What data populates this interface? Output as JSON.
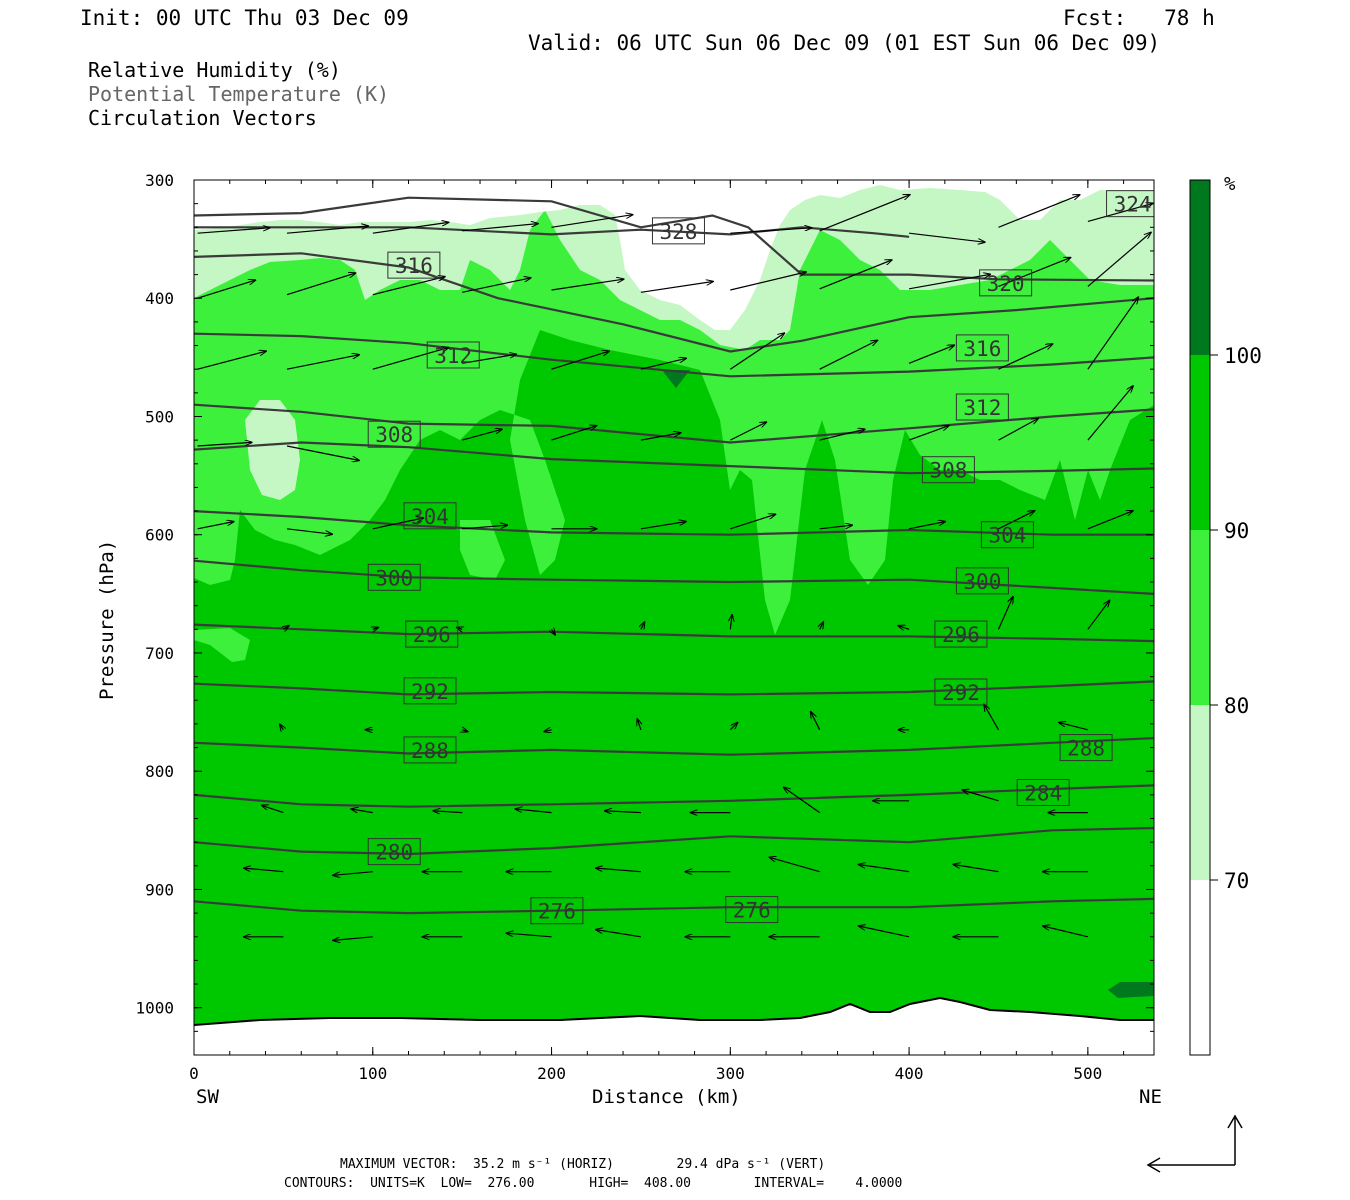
{
  "header": {
    "init": "Init: 00 UTC Thu 03 Dec 09",
    "fcst": "Fcst:   78 h",
    "valid": "Valid: 06 UTC Sun 06 Dec 09 (01 EST Sun 06 Dec 09)"
  },
  "legend": {
    "rh": "Relative Humidity (%)",
    "theta": "Potential Temperature (K)",
    "vectors": "Circulation Vectors"
  },
  "footer": {
    "max_vector": "MAXIMUM VECTOR:  35.2 m s⁻¹ (HORIZ)        29.4 dPa s⁻¹ (VERT)",
    "contours": "CONTOURS:  UNITS=K  LOW=  276.00       HIGH=  408.00        INTERVAL=    4.0000"
  },
  "colors": {
    "rh_70_80": "#c4f7c4",
    "rh_80_90": "#3cf03c",
    "rh_90_100": "#00c800",
    "rh_100": "#00781e",
    "contour": "#3a3a3a",
    "vector": "#000000"
  },
  "chart_data": {
    "type": "cross-section",
    "xlabel": "Distance (km)",
    "ylabel": "Pressure (hPa)",
    "x_left_label": "SW",
    "x_right_label": "NE",
    "xlim": [
      0,
      537
    ],
    "ylim": [
      1040,
      300
    ],
    "x_ticks": [
      0,
      100,
      200,
      300,
      400,
      500
    ],
    "y_ticks": [
      300,
      400,
      500,
      600,
      700,
      800,
      900,
      1000
    ],
    "colorbar": {
      "unit": "%",
      "levels": [
        70,
        80,
        90,
        100
      ],
      "colors": [
        "#ffffff",
        "#c4f7c4",
        "#3cf03c",
        "#00c800",
        "#00781e"
      ]
    },
    "theta_contours": [
      {
        "value": 276,
        "x": [
          0,
          60,
          120,
          200,
          300,
          400,
          480,
          537
        ],
        "p": [
          910,
          918,
          920,
          918,
          915,
          915,
          910,
          908
        ]
      },
      {
        "value": 280,
        "x": [
          0,
          60,
          120,
          200,
          300,
          400,
          480,
          537
        ],
        "p": [
          860,
          868,
          870,
          865,
          855,
          860,
          850,
          848
        ]
      },
      {
        "value": 284,
        "x": [
          0,
          60,
          120,
          200,
          300,
          400,
          480,
          537
        ],
        "p": [
          820,
          828,
          830,
          828,
          825,
          820,
          815,
          812
        ]
      },
      {
        "value": 288,
        "x": [
          0,
          60,
          120,
          200,
          300,
          400,
          480,
          537
        ],
        "p": [
          776,
          780,
          785,
          782,
          786,
          782,
          776,
          772
        ]
      },
      {
        "value": 292,
        "x": [
          0,
          60,
          120,
          200,
          300,
          400,
          480,
          537
        ],
        "p": [
          726,
          730,
          735,
          733,
          735,
          733,
          728,
          724
        ]
      },
      {
        "value": 296,
        "x": [
          0,
          60,
          120,
          200,
          300,
          400,
          480,
          537
        ],
        "p": [
          676,
          680,
          684,
          682,
          686,
          686,
          688,
          690
        ]
      },
      {
        "value": 300,
        "x": [
          0,
          60,
          120,
          200,
          300,
          400,
          480,
          537
        ],
        "p": [
          622,
          630,
          636,
          638,
          640,
          638,
          645,
          650
        ]
      },
      {
        "value": 304,
        "x": [
          0,
          60,
          120,
          200,
          300,
          400,
          480,
          537
        ],
        "p": [
          580,
          585,
          592,
          598,
          600,
          596,
          600,
          600
        ]
      },
      {
        "value": 308,
        "x": [
          0,
          60,
          120,
          200,
          300,
          400,
          480,
          537
        ],
        "p": [
          528,
          522,
          526,
          536,
          542,
          548,
          546,
          544
        ]
      },
      {
        "value": 312,
        "x": [
          0,
          60,
          120,
          200,
          300,
          400,
          480,
          537
        ],
        "p": [
          490,
          496,
          506,
          508,
          522,
          510,
          500,
          494
        ]
      },
      {
        "value": 316,
        "x": [
          0,
          60,
          120,
          200,
          300,
          400,
          480,
          537
        ],
        "p": [
          430,
          432,
          438,
          452,
          466,
          462,
          456,
          450
        ]
      },
      {
        "value": 320,
        "x": [
          0,
          60,
          120,
          170,
          240,
          300,
          340,
          400,
          460,
          537
        ],
        "p": [
          365,
          362,
          374,
          400,
          422,
          445,
          436,
          416,
          410,
          400
        ]
      },
      {
        "value": 324,
        "x": [
          0,
          60,
          120,
          200,
          250,
          290,
          310,
          340,
          400,
          450,
          537
        ],
        "p": [
          330,
          328,
          315,
          318,
          340,
          330,
          340,
          380,
          380,
          384,
          385
        ]
      },
      {
        "value": 328,
        "x": [
          0,
          60,
          120,
          200,
          250,
          300,
          340,
          380,
          400
        ],
        "p": [
          340,
          340,
          340,
          346,
          342,
          346,
          340,
          345,
          348
        ]
      }
    ],
    "contour_labels": [
      {
        "value": 276,
        "x": 203,
        "p": 918
      },
      {
        "value": 276,
        "x": 312,
        "p": 917
      },
      {
        "value": 280,
        "x": 112,
        "p": 868
      },
      {
        "value": 284,
        "x": 475,
        "p": 818
      },
      {
        "value": 288,
        "x": 132,
        "p": 782
      },
      {
        "value": 288,
        "x": 499,
        "p": 780
      },
      {
        "value": 292,
        "x": 132,
        "p": 732
      },
      {
        "value": 292,
        "x": 429,
        "p": 733
      },
      {
        "value": 296,
        "x": 133,
        "p": 684
      },
      {
        "value": 296,
        "x": 429,
        "p": 684
      },
      {
        "value": 300,
        "x": 112,
        "p": 636
      },
      {
        "value": 300,
        "x": 441,
        "p": 639
      },
      {
        "value": 304,
        "x": 132,
        "p": 584
      },
      {
        "value": 304,
        "x": 455,
        "p": 600
      },
      {
        "value": 308,
        "x": 112,
        "p": 515
      },
      {
        "value": 308,
        "x": 422,
        "p": 545
      },
      {
        "value": 312,
        "x": 145,
        "p": 448
      },
      {
        "value": 312,
        "x": 441,
        "p": 492
      },
      {
        "value": 316,
        "x": 123,
        "p": 372
      },
      {
        "value": 316,
        "x": 441,
        "p": 442
      },
      {
        "value": 320,
        "x": 454,
        "p": 387
      },
      {
        "value": 324,
        "x": 525,
        "p": 320
      },
      {
        "value": 328,
        "x": 271,
        "p": 343
      }
    ],
    "vectors": [
      {
        "x": 2,
        "p": 345,
        "u": 40,
        "w": 3
      },
      {
        "x": 52,
        "p": 345,
        "u": 45,
        "w": 4
      },
      {
        "x": 100,
        "p": 345,
        "u": 42,
        "w": 6
      },
      {
        "x": 150,
        "p": 343,
        "u": 42,
        "w": 4
      },
      {
        "x": 200,
        "p": 340,
        "u": 45,
        "w": 7
      },
      {
        "x": 300,
        "p": 345,
        "u": 45,
        "w": 3
      },
      {
        "x": 350,
        "p": 343,
        "u": 50,
        "w": 20
      },
      {
        "x": 400,
        "p": 345,
        "u": 42,
        "w": -5
      },
      {
        "x": 450,
        "p": 340,
        "u": 45,
        "w": 18
      },
      {
        "x": 500,
        "p": 335,
        "u": 36,
        "w": 10
      },
      {
        "x": 2,
        "p": 400,
        "u": 32,
        "w": 10
      },
      {
        "x": 52,
        "p": 397,
        "u": 38,
        "w": 12
      },
      {
        "x": 100,
        "p": 397,
        "u": 40,
        "w": 10
      },
      {
        "x": 150,
        "p": 395,
        "u": 38,
        "w": 8
      },
      {
        "x": 200,
        "p": 393,
        "u": 40,
        "w": 6
      },
      {
        "x": 250,
        "p": 395,
        "u": 40,
        "w": 6
      },
      {
        "x": 300,
        "p": 393,
        "u": 42,
        "w": 10
      },
      {
        "x": 350,
        "p": 392,
        "u": 40,
        "w": 16
      },
      {
        "x": 400,
        "p": 392,
        "u": 45,
        "w": 8
      },
      {
        "x": 450,
        "p": 390,
        "u": 40,
        "w": 16
      },
      {
        "x": 500,
        "p": 390,
        "u": 35,
        "w": 30
      },
      {
        "x": 2,
        "p": 460,
        "u": 38,
        "w": 10
      },
      {
        "x": 52,
        "p": 460,
        "u": 40,
        "w": 8
      },
      {
        "x": 100,
        "p": 460,
        "u": 42,
        "w": 12
      },
      {
        "x": 150,
        "p": 455,
        "u": 30,
        "w": 5
      },
      {
        "x": 200,
        "p": 460,
        "u": 32,
        "w": 10
      },
      {
        "x": 250,
        "p": 460,
        "u": 25,
        "w": 6
      },
      {
        "x": 300,
        "p": 460,
        "u": 30,
        "w": 20
      },
      {
        "x": 350,
        "p": 460,
        "u": 32,
        "w": 16
      },
      {
        "x": 400,
        "p": 455,
        "u": 25,
        "w": 10
      },
      {
        "x": 450,
        "p": 460,
        "u": 30,
        "w": 14
      },
      {
        "x": 500,
        "p": 460,
        "u": 28,
        "w": 40
      },
      {
        "x": 2,
        "p": 525,
        "u": 30,
        "w": 2
      },
      {
        "x": 52,
        "p": 525,
        "u": 40,
        "w": -8
      },
      {
        "x": 150,
        "p": 520,
        "u": 22,
        "w": 6
      },
      {
        "x": 200,
        "p": 520,
        "u": 25,
        "w": 8
      },
      {
        "x": 250,
        "p": 520,
        "u": 22,
        "w": 4
      },
      {
        "x": 300,
        "p": 520,
        "u": 20,
        "w": 10
      },
      {
        "x": 350,
        "p": 520,
        "u": 25,
        "w": 6
      },
      {
        "x": 400,
        "p": 520,
        "u": 22,
        "w": 8
      },
      {
        "x": 450,
        "p": 520,
        "u": 22,
        "w": 12
      },
      {
        "x": 500,
        "p": 520,
        "u": 25,
        "w": 30
      },
      {
        "x": 2,
        "p": 595,
        "u": 20,
        "w": 4
      },
      {
        "x": 52,
        "p": 595,
        "u": 25,
        "w": -3
      },
      {
        "x": 100,
        "p": 595,
        "u": 28,
        "w": 6
      },
      {
        "x": 150,
        "p": 595,
        "u": 25,
        "w": 2
      },
      {
        "x": 200,
        "p": 595,
        "u": 25,
        "w": 0
      },
      {
        "x": 250,
        "p": 595,
        "u": 25,
        "w": 4
      },
      {
        "x": 300,
        "p": 595,
        "u": 25,
        "w": 8
      },
      {
        "x": 350,
        "p": 595,
        "u": 18,
        "w": 2
      },
      {
        "x": 400,
        "p": 595,
        "u": 20,
        "w": 4
      },
      {
        "x": 450,
        "p": 595,
        "u": 20,
        "w": 10
      },
      {
        "x": 500,
        "p": 595,
        "u": 25,
        "w": 10
      },
      {
        "x": 50,
        "p": 680,
        "u": 3,
        "w": 2
      },
      {
        "x": 100,
        "p": 680,
        "u": 3,
        "w": 1
      },
      {
        "x": 150,
        "p": 680,
        "u": -3,
        "w": 1
      },
      {
        "x": 200,
        "p": 680,
        "u": 2,
        "w": -3
      },
      {
        "x": 250,
        "p": 680,
        "u": 2,
        "w": 4
      },
      {
        "x": 300,
        "p": 680,
        "u": 1,
        "w": 8
      },
      {
        "x": 350,
        "p": 680,
        "u": 2,
        "w": 4
      },
      {
        "x": 400,
        "p": 680,
        "u": -6,
        "w": 2
      },
      {
        "x": 450,
        "p": 680,
        "u": 8,
        "w": 18
      },
      {
        "x": 500,
        "p": 680,
        "u": 12,
        "w": 16
      },
      {
        "x": 50,
        "p": 765,
        "u": -2,
        "w": 3
      },
      {
        "x": 100,
        "p": 765,
        "u": -4,
        "w": 0
      },
      {
        "x": 150,
        "p": 765,
        "u": 3,
        "w": -1
      },
      {
        "x": 200,
        "p": 765,
        "u": -4,
        "w": -1
      },
      {
        "x": 250,
        "p": 765,
        "u": -2,
        "w": 6
      },
      {
        "x": 300,
        "p": 765,
        "u": 4,
        "w": 4
      },
      {
        "x": 350,
        "p": 765,
        "u": -5,
        "w": 10
      },
      {
        "x": 400,
        "p": 765,
        "u": -6,
        "w": 0
      },
      {
        "x": 450,
        "p": 765,
        "u": -8,
        "w": 14
      },
      {
        "x": 500,
        "p": 765,
        "u": -16,
        "w": 4
      },
      {
        "x": 50,
        "p": 835,
        "u": -12,
        "w": 4
      },
      {
        "x": 100,
        "p": 835,
        "u": -12,
        "w": 2
      },
      {
        "x": 150,
        "p": 835,
        "u": -16,
        "w": 1
      },
      {
        "x": 200,
        "p": 835,
        "u": -20,
        "w": 2
      },
      {
        "x": 250,
        "p": 835,
        "u": -20,
        "w": 1
      },
      {
        "x": 300,
        "p": 835,
        "u": -22,
        "w": 0
      },
      {
        "x": 350,
        "p": 835,
        "u": -20,
        "w": 14
      },
      {
        "x": 400,
        "p": 825,
        "u": -20,
        "w": 0
      },
      {
        "x": 450,
        "p": 825,
        "u": -20,
        "w": 6
      },
      {
        "x": 500,
        "p": 835,
        "u": -22,
        "w": 0
      },
      {
        "x": 50,
        "p": 885,
        "u": -22,
        "w": 2
      },
      {
        "x": 100,
        "p": 885,
        "u": -22,
        "w": -2
      },
      {
        "x": 150,
        "p": 885,
        "u": -22,
        "w": 0
      },
      {
        "x": 200,
        "p": 885,
        "u": -25,
        "w": 0
      },
      {
        "x": 250,
        "p": 885,
        "u": -25,
        "w": 2
      },
      {
        "x": 300,
        "p": 885,
        "u": -25,
        "w": 0
      },
      {
        "x": 350,
        "p": 885,
        "u": -28,
        "w": 8
      },
      {
        "x": 400,
        "p": 885,
        "u": -28,
        "w": 4
      },
      {
        "x": 450,
        "p": 885,
        "u": -25,
        "w": 4
      },
      {
        "x": 500,
        "p": 885,
        "u": -25,
        "w": 0
      },
      {
        "x": 50,
        "p": 940,
        "u": -22,
        "w": 0
      },
      {
        "x": 100,
        "p": 940,
        "u": -22,
        "w": -2
      },
      {
        "x": 150,
        "p": 940,
        "u": -22,
        "w": 0
      },
      {
        "x": 200,
        "p": 940,
        "u": -25,
        "w": 2
      },
      {
        "x": 250,
        "p": 940,
        "u": -25,
        "w": 4
      },
      {
        "x": 300,
        "p": 940,
        "u": -25,
        "w": 0
      },
      {
        "x": 350,
        "p": 940,
        "u": -28,
        "w": 0
      },
      {
        "x": 400,
        "p": 940,
        "u": -28,
        "w": 6
      },
      {
        "x": 450,
        "p": 940,
        "u": -25,
        "w": 0
      },
      {
        "x": 500,
        "p": 940,
        "u": -25,
        "w": 6
      }
    ]
  }
}
